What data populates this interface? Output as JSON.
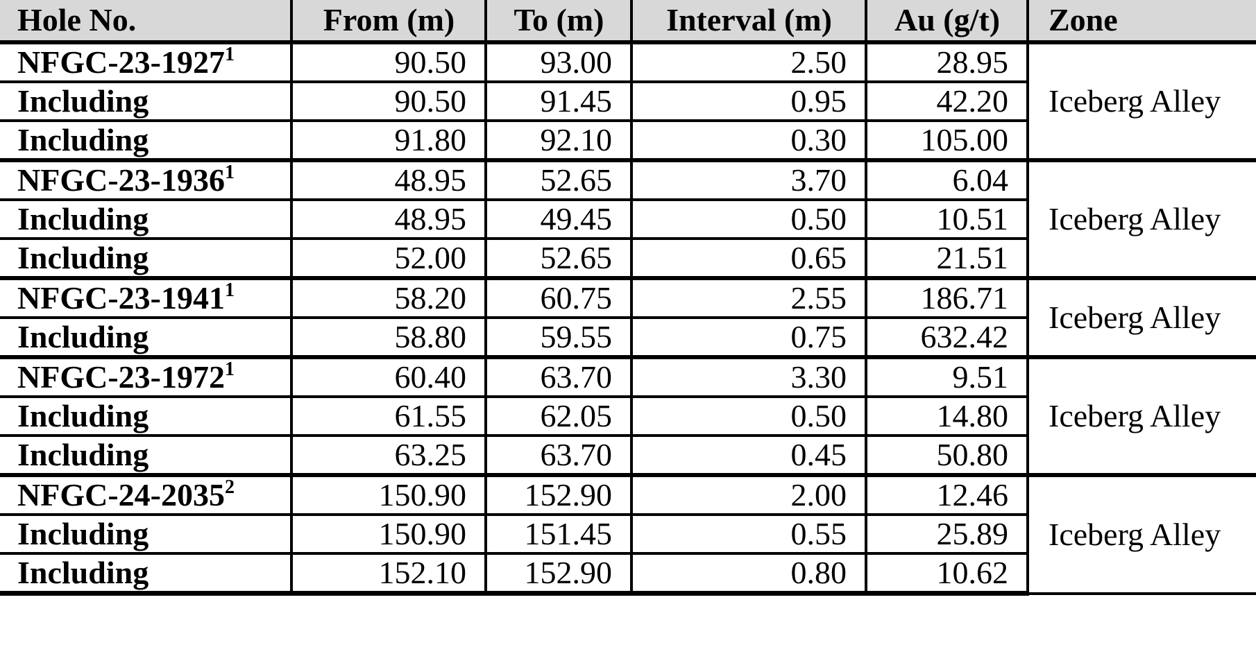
{
  "colors": {
    "header_bg": "#d8d8d8",
    "border": "#000000",
    "text": "#000000",
    "background": "#ffffff"
  },
  "table": {
    "columns": [
      {
        "key": "hole",
        "label": "Hole No."
      },
      {
        "key": "from",
        "label": "From (m)"
      },
      {
        "key": "to",
        "label": "To (m)"
      },
      {
        "key": "interval",
        "label": "Interval (m)"
      },
      {
        "key": "au",
        "label": "Au (g/t)"
      },
      {
        "key": "zone",
        "label": "Zone"
      }
    ],
    "groups": [
      {
        "zone": "Iceberg Alley",
        "rows": [
          {
            "hole": "NFGC-23-1927",
            "sup": "1",
            "from": "90.50",
            "to": "93.00",
            "interval": "2.50",
            "au": "28.95"
          },
          {
            "hole": "Including",
            "sup": "",
            "from": "90.50",
            "to": "91.45",
            "interval": "0.95",
            "au": "42.20"
          },
          {
            "hole": "Including",
            "sup": "",
            "from": "91.80",
            "to": "92.10",
            "interval": "0.30",
            "au": "105.00"
          }
        ]
      },
      {
        "zone": "Iceberg Alley",
        "rows": [
          {
            "hole": "NFGC-23-1936",
            "sup": "1",
            "from": "48.95",
            "to": "52.65",
            "interval": "3.70",
            "au": "6.04"
          },
          {
            "hole": "Including",
            "sup": "",
            "from": "48.95",
            "to": "49.45",
            "interval": "0.50",
            "au": "10.51"
          },
          {
            "hole": "Including",
            "sup": "",
            "from": "52.00",
            "to": "52.65",
            "interval": "0.65",
            "au": "21.51"
          }
        ]
      },
      {
        "zone": "Iceberg Alley",
        "rows": [
          {
            "hole": "NFGC-23-1941",
            "sup": "1",
            "from": "58.20",
            "to": "60.75",
            "interval": "2.55",
            "au": "186.71"
          },
          {
            "hole": "Including",
            "sup": "",
            "from": "58.80",
            "to": "59.55",
            "interval": "0.75",
            "au": "632.42"
          }
        ]
      },
      {
        "zone": "Iceberg Alley",
        "rows": [
          {
            "hole": "NFGC-23-1972",
            "sup": "1",
            "from": "60.40",
            "to": "63.70",
            "interval": "3.30",
            "au": "9.51"
          },
          {
            "hole": "Including",
            "sup": "",
            "from": "61.55",
            "to": "62.05",
            "interval": "0.50",
            "au": "14.80"
          },
          {
            "hole": "Including",
            "sup": "",
            "from": "63.25",
            "to": "63.70",
            "interval": "0.45",
            "au": "50.80"
          }
        ]
      },
      {
        "zone": "Iceberg Alley",
        "rows": [
          {
            "hole": "NFGC-24-2035",
            "sup": "2",
            "from": "150.90",
            "to": "152.90",
            "interval": "2.00",
            "au": "12.46"
          },
          {
            "hole": "Including",
            "sup": "",
            "from": "150.90",
            "to": "151.45",
            "interval": "0.55",
            "au": "25.89"
          },
          {
            "hole": "Including",
            "sup": "",
            "from": "152.10",
            "to": "152.90",
            "interval": "0.80",
            "au": "10.62"
          }
        ]
      }
    ]
  }
}
